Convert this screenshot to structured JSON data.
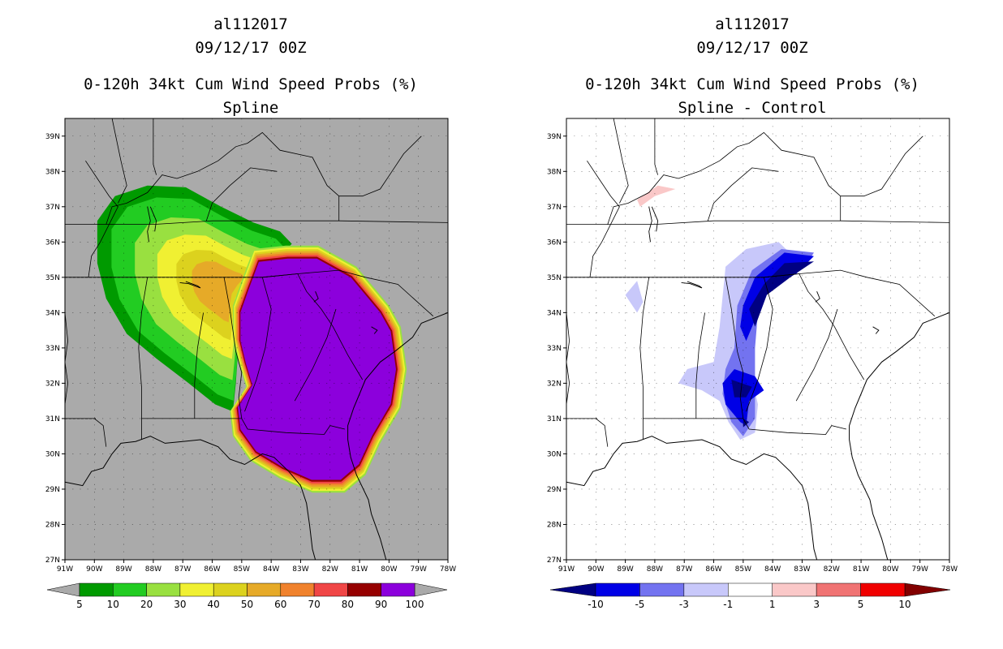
{
  "left_panel": {
    "storm_id": "al112017",
    "datetime": "09/12/17 00Z",
    "product": "0-120h 34kt Cum Wind Speed Probs (%)",
    "subtitle": "Spline",
    "colorbar": {
      "labels": [
        "5",
        "10",
        "20",
        "30",
        "40",
        "50",
        "60",
        "70",
        "80",
        "90",
        "100"
      ],
      "colors": [
        "#009a00",
        "#22cc22",
        "#99e040",
        "#f0f032",
        "#dcd21e",
        "#e6aa28",
        "#f0822d",
        "#f04646",
        "#960000",
        "#8c00dc"
      ],
      "end_color": "#aaaaaa"
    },
    "background": "#aaaaaa"
  },
  "right_panel": {
    "storm_id": "al112017",
    "datetime": "09/12/17 00Z",
    "product": "0-120h 34kt Cum Wind Speed Probs (%)",
    "subtitle": "Spline - Control",
    "colorbar": {
      "labels": [
        "-10",
        "-5",
        "-3",
        "-1",
        "1",
        "3",
        "5",
        "10"
      ],
      "colors": [
        "#0000e6",
        "#7373f0",
        "#c8c8fa",
        "#ffffff",
        "#fac8c8",
        "#f07373",
        "#f00000"
      ],
      "neg_end_color": "#000082",
      "pos_end_color": "#820000"
    },
    "background": "#ffffff"
  },
  "axes": {
    "lat_labels": [
      "39N",
      "38N",
      "37N",
      "36N",
      "35N",
      "34N",
      "33N",
      "32N",
      "31N",
      "30N",
      "29N",
      "28N",
      "27N"
    ],
    "lon_labels": [
      "91W",
      "90W",
      "89W",
      "88W",
      "87W",
      "86W",
      "85W",
      "84W",
      "83W",
      "82W",
      "81W",
      "80W",
      "79W",
      "78W"
    ],
    "lat_range": [
      27,
      39.5
    ],
    "lon_range": [
      -91,
      -78
    ]
  }
}
